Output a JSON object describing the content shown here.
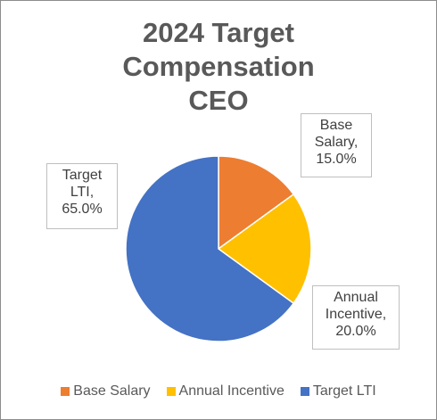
{
  "chart_data": {
    "type": "pie",
    "title_lines": [
      "2024 Target",
      "Compensation",
      "CEO"
    ],
    "slices": [
      {
        "label": "Base Salary",
        "value": 15.0,
        "color": "#ED7D31",
        "callout_lines": [
          "Base",
          "Salary,",
          "15.0%"
        ]
      },
      {
        "label": "Annual Incentive",
        "value": 20.0,
        "color": "#FFC000",
        "callout_lines": [
          "Annual",
          "Incentive,",
          "20.0%"
        ]
      },
      {
        "label": "Target LTI",
        "value": 65.0,
        "color": "#4472C4",
        "callout_lines": [
          "Target",
          "LTI,",
          "65.0%"
        ]
      }
    ],
    "legend_position": "bottom"
  }
}
